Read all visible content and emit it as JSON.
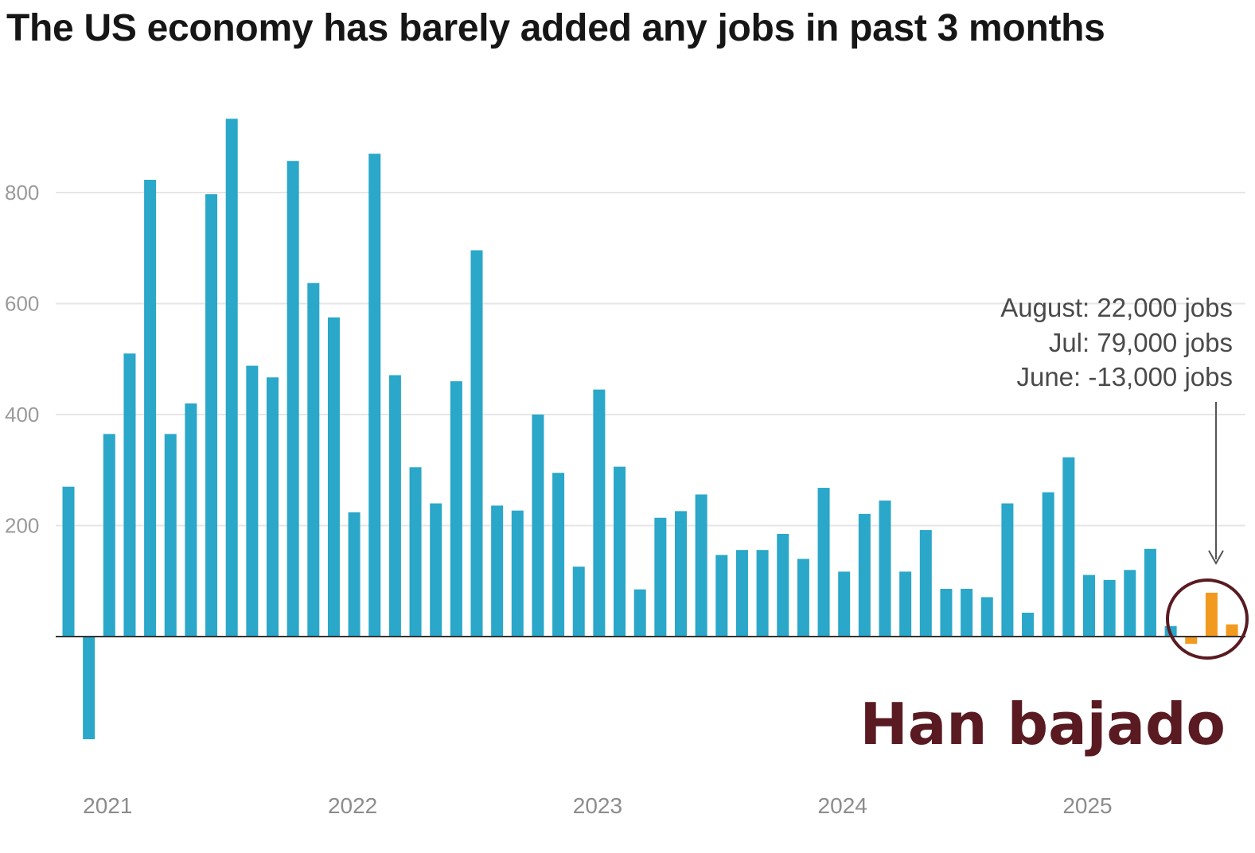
{
  "chart_data": {
    "type": "bar",
    "title": "The US economy has barely added any jobs in past 3 months",
    "xlabel": "",
    "ylabel": "",
    "ylim": [
      -190,
      950
    ],
    "yticks": [
      "200",
      "400",
      "600",
      "800"
    ],
    "ytick_values": [
      200,
      400,
      600,
      800
    ],
    "year_labels": [
      "2021",
      "2022",
      "2023",
      "2024",
      "2025"
    ],
    "year_label_bar_index": [
      2,
      14,
      26,
      38,
      50
    ],
    "grid": true,
    "colors": {
      "default": "#2aa7c9",
      "highlight": "#f29a1f",
      "axis": "#333333",
      "grid": "#e6e6e6"
    },
    "values": [
      270,
      -185,
      365,
      510,
      823,
      365,
      420,
      797,
      933,
      488,
      467,
      857,
      637,
      575,
      224,
      870,
      471,
      305,
      240,
      460,
      696,
      236,
      227,
      400,
      295,
      126,
      445,
      306,
      85,
      214,
      226,
      256,
      147,
      156,
      156,
      185,
      140,
      268,
      117,
      221,
      245,
      117,
      192,
      86,
      86,
      71,
      240,
      43,
      260,
      323,
      111,
      102,
      120,
      158,
      19,
      -13,
      79,
      22
    ],
    "highlight_indices": [
      55,
      56,
      57
    ],
    "annotation": {
      "lines": [
        "August: 22,000 jobs",
        "Jul: 79,000 jobs",
        "June: -13,000 jobs"
      ]
    }
  },
  "overlay": {
    "caption": "Han bajado",
    "caption_color": "#5a1a22",
    "circle_color": "#5a1a22"
  }
}
